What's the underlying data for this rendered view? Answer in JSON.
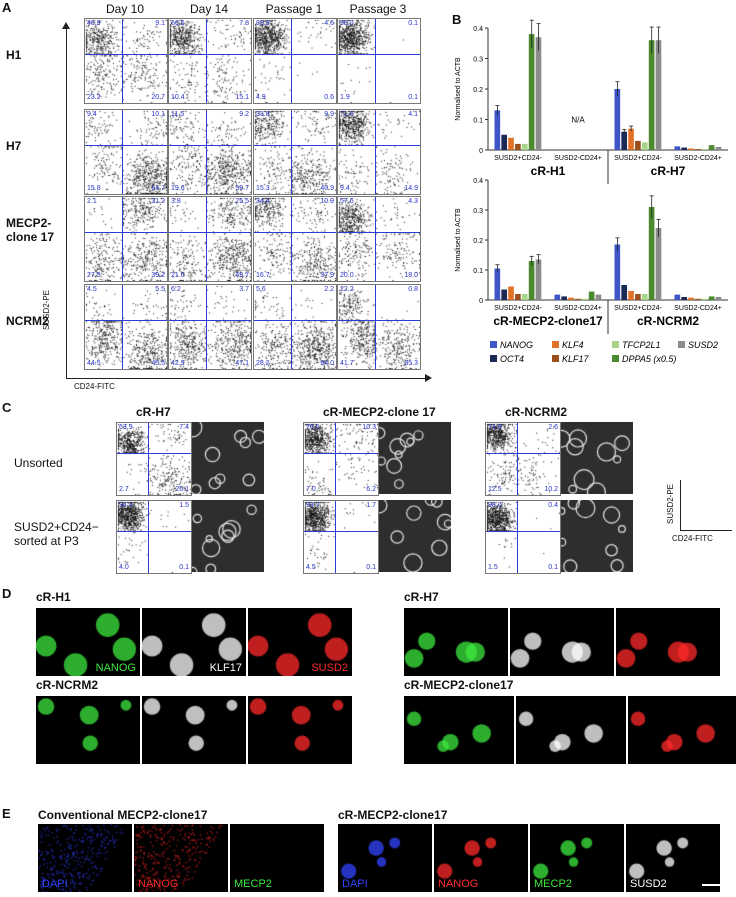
{
  "panels": {
    "A": "A",
    "B": "B",
    "C": "C",
    "D": "D",
    "E": "E"
  },
  "panelA": {
    "columns": [
      "Day 10",
      "Day 14",
      "Passage 1",
      "Passage 3"
    ],
    "rows": [
      {
        "label": "H1",
        "cells": [
          [
            "46.9",
            "9.1",
            "23.2",
            "20.7"
          ],
          [
            "66.6",
            "7.8",
            "10.4",
            "15.1"
          ],
          [
            "89.9",
            "4.6",
            "4.9",
            "0.6"
          ],
          [
            "98.0",
            "0.1",
            "1.9",
            "0.1"
          ]
        ]
      },
      {
        "label": "H7",
        "cells": [
          [
            "9.4",
            "10.1",
            "15.8",
            "64.7"
          ],
          [
            "11.5",
            "9.2",
            "19.6",
            "59.7"
          ],
          [
            "33.8",
            "9.9",
            "15.3",
            "40.9"
          ],
          [
            "71.6",
            "4.1",
            "9.4",
            "14.9"
          ]
        ]
      },
      {
        "label": "MECP2-\nclone 17",
        "cells": [
          [
            "2.1",
            "31.2",
            "27.5",
            "39.2"
          ],
          [
            "3.8",
            "25.5",
            "21.0",
            "49.7"
          ],
          [
            "34.4",
            "10.9",
            "16.7",
            "37.9"
          ],
          [
            "57.6",
            "4.3",
            "20.0",
            "18.0"
          ]
        ]
      },
      {
        "label": "NCRM2",
        "cells": [
          [
            "4.5",
            "5.5",
            "44.5",
            "45.5"
          ],
          [
            "6.2",
            "3.7",
            "42.9",
            "47.1"
          ],
          [
            "5.6",
            "2.2",
            "28.2",
            "64.0"
          ],
          [
            "22.2",
            "0.8",
            "41.7",
            "35.3"
          ]
        ]
      }
    ],
    "y_axis": "SUSD2-PE",
    "x_axis": "CD24-FITC"
  },
  "panelB": {
    "ylabel": "Normalised to ACTB",
    "top": {
      "ylim": [
        0,
        0.4
      ],
      "ticks": [
        "0",
        "0.1",
        "0.2",
        "0.3",
        "0.4"
      ],
      "groups": [
        {
          "line": "cR-H1",
          "subs": [
            {
              "label": "SUSD2+CD24-",
              "values": [
                0.13,
                0.05,
                0.04,
                0.02,
                0.02,
                0.38,
                0.37
              ]
            },
            {
              "label": "SUSD2-CD24+",
              "values": [],
              "na": "N/A"
            }
          ]
        },
        {
          "line": "cR-H7",
          "subs": [
            {
              "label": "SUSD2+CD24-",
              "values": [
                0.2,
                0.06,
                0.07,
                0.03,
                0.025,
                0.36,
                0.36
              ]
            },
            {
              "label": "SUSD2-CD24+",
              "values": [
                0.012,
                0.008,
                0.005,
                0.003,
                0.003,
                0.016,
                0.01
              ]
            }
          ]
        }
      ]
    },
    "bottom": {
      "ylim": [
        0,
        0.4
      ],
      "ticks": [
        "0",
        "0.1",
        "0.2",
        "0.3",
        "0.4"
      ],
      "groups": [
        {
          "line": "cR-MECP2-clone17",
          "subs": [
            {
              "label": "SUSD2+CD24-",
              "values": [
                0.105,
                0.035,
                0.045,
                0.02,
                0.02,
                0.13,
                0.135
              ]
            },
            {
              "label": "SUSD2-CD24+",
              "values": [
                0.018,
                0.012,
                0.008,
                0.004,
                0.004,
                0.028,
                0.018
              ]
            }
          ]
        },
        {
          "line": "cR-NCRM2",
          "subs": [
            {
              "label": "SUSD2+CD24-",
              "values": [
                0.185,
                0.05,
                0.03,
                0.02,
                0.02,
                0.31,
                0.24
              ]
            },
            {
              "label": "SUSD2-CD24+",
              "values": [
                0.018,
                0.01,
                0.008,
                0.004,
                0.004,
                0.012,
                0.01
              ]
            }
          ]
        }
      ]
    },
    "legend": [
      {
        "name": "NANOG",
        "color": "#3f56c8"
      },
      {
        "name": "OCT4",
        "color": "#1b2a55"
      },
      {
        "name": "KLF4",
        "color": "#e0722a"
      },
      {
        "name": "KLF17",
        "color": "#9c4e1f"
      },
      {
        "name": "TFCP2L1",
        "color": "#a8d48a"
      },
      {
        "name": "DPPA5 (x0.5)",
        "color": "#4b8a2e"
      },
      {
        "name": "SUSD2",
        "color": "#8c8c8c"
      }
    ]
  },
  "panelC": {
    "lines": [
      {
        "name": "cR-H7",
        "unsorted": [
          "63.9",
          "7.4",
          "2.7",
          "26.1"
        ],
        "sorted": [
          "94.4",
          "1.5",
          "4.0",
          "0.1"
        ]
      },
      {
        "name": "cR-MECP2-clone 17",
        "unsorted": [
          "76.5",
          "10.3",
          "7.0",
          "6.2"
        ],
        "sorted": [
          "93.7",
          "1.7",
          "4.5",
          "0.1"
        ]
      },
      {
        "name": "cR-NCRM2",
        "unsorted": [
          "74.8",
          "2.6",
          "12.5",
          "10.2"
        ],
        "sorted": [
          "98.0",
          "0.4",
          "1.5",
          "0.1"
        ]
      }
    ],
    "row1": "Unsorted",
    "row2a": "SUSD2+CD24−",
    "row2b": "sorted at P3",
    "y_axis": "SUSD2-PE",
    "x_axis": "CD24-FITC"
  },
  "panelD": {
    "titles": [
      "cR-H1",
      "cR-H7",
      "cR-NCRM2",
      "cR-MECP2-clone17"
    ],
    "channels": [
      {
        "name": "NANOG",
        "color": "#3ee83e"
      },
      {
        "name": "KLF17",
        "color": "#ffffff"
      },
      {
        "name": "SUSD2",
        "color": "#ff2a2a"
      }
    ]
  },
  "panelE": {
    "left_title": "Conventional MECP2-clone17",
    "right_title": "cR-MECP2-clone17",
    "left_channels": [
      {
        "name": "DAPI",
        "color": "#3344ff"
      },
      {
        "name": "NANOG",
        "color": "#ff2a2a"
      },
      {
        "name": "MECP2",
        "color": "#3ee83e"
      }
    ],
    "right_channels": [
      {
        "name": "DAPI",
        "color": "#3344ff"
      },
      {
        "name": "NANOG",
        "color": "#ff2a2a"
      },
      {
        "name": "MECP2",
        "color": "#3ee83e"
      },
      {
        "name": "SUSD2",
        "color": "#ffffff"
      }
    ]
  }
}
